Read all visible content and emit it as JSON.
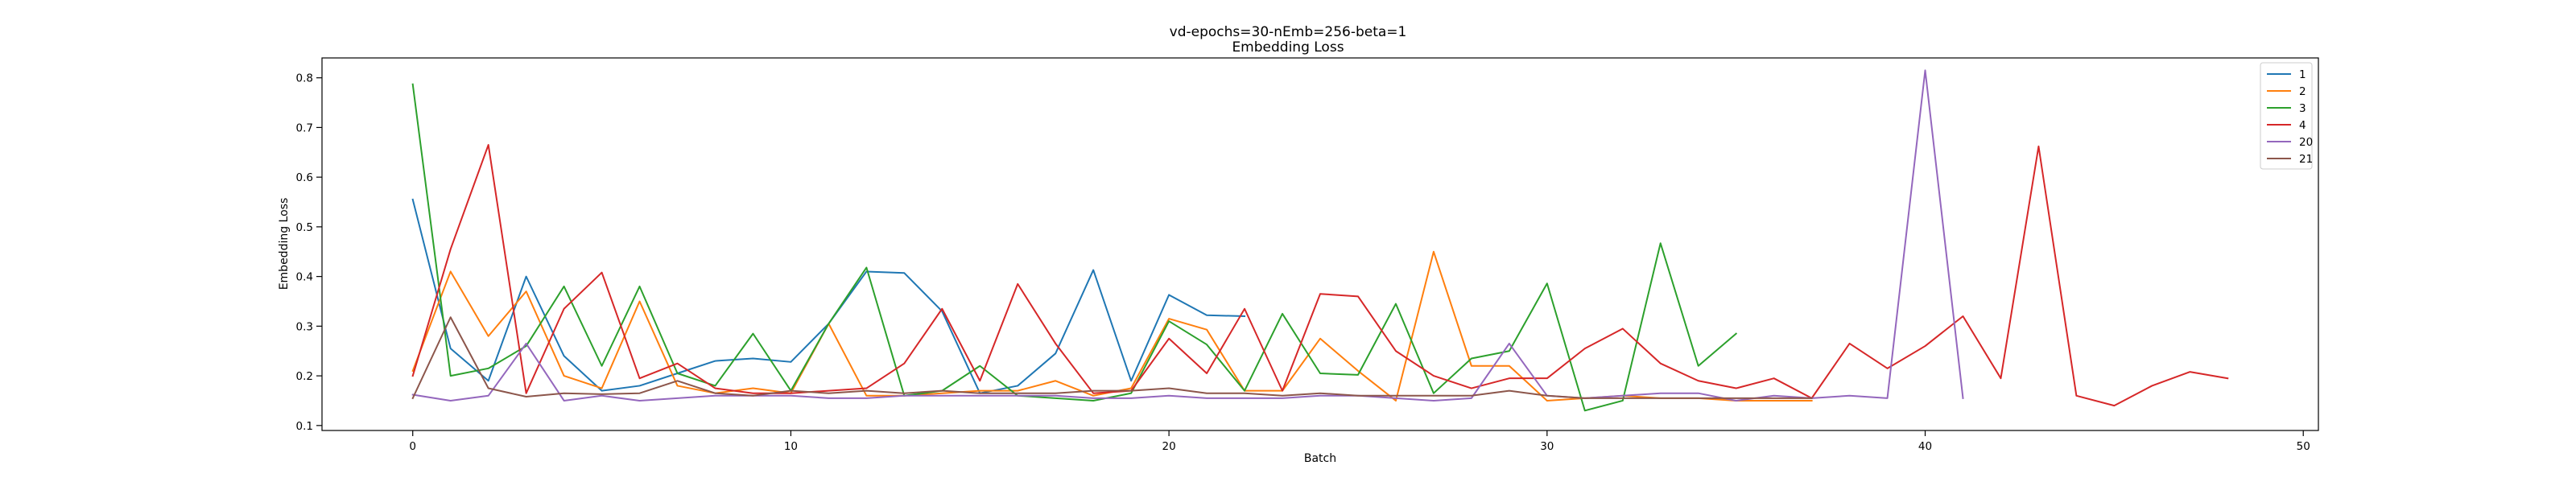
{
  "chart_data": {
    "type": "line",
    "title": "vd-epochs=30-nEmb=256-beta=1",
    "subtitle": "Embedding Loss",
    "xlabel": "Batch",
    "ylabel": "Embedding Loss",
    "xlim": [
      -2.4,
      50.4
    ],
    "ylim": [
      0.09,
      0.84
    ],
    "xticks": [
      0,
      10,
      20,
      30,
      40,
      50
    ],
    "xtick_labels": [
      "0",
      "10",
      "20",
      "30",
      "40",
      "50"
    ],
    "yticks": [
      0.1,
      0.2,
      0.3,
      0.4,
      0.5,
      0.6,
      0.7,
      0.8
    ],
    "ytick_labels": [
      "0.1",
      "0.2",
      "0.3",
      "0.4",
      "0.5",
      "0.6",
      "0.7",
      "0.8"
    ],
    "grid": false,
    "legend_position": "top-right",
    "series": [
      {
        "name": "1",
        "color": "#1f77b4",
        "x": [
          0,
          1,
          2,
          3,
          4,
          5,
          6,
          7,
          8,
          9,
          10,
          11,
          12,
          13,
          14,
          15,
          16,
          17,
          18,
          19,
          20,
          21,
          22
        ],
        "values": [
          0.555,
          0.255,
          0.19,
          0.4,
          0.24,
          0.17,
          0.18,
          0.205,
          0.23,
          0.235,
          0.228,
          0.305,
          0.41,
          0.407,
          0.33,
          0.165,
          0.18,
          0.245,
          0.413,
          0.19,
          0.363,
          0.322,
          0.32
        ]
      },
      {
        "name": "2",
        "color": "#ff7f0e",
        "x": [
          0,
          1,
          2,
          3,
          4,
          5,
          6,
          7,
          8,
          9,
          10,
          11,
          12,
          13,
          14,
          15,
          16,
          17,
          18,
          19,
          20,
          21,
          22,
          23,
          24,
          25,
          26,
          27,
          28,
          29,
          30,
          31,
          32,
          33,
          34,
          35,
          36,
          37
        ],
        "values": [
          0.21,
          0.41,
          0.28,
          0.37,
          0.2,
          0.175,
          0.35,
          0.18,
          0.165,
          0.175,
          0.165,
          0.305,
          0.16,
          0.16,
          0.165,
          0.17,
          0.17,
          0.19,
          0.16,
          0.175,
          0.315,
          0.293,
          0.17,
          0.17,
          0.275,
          0.21,
          0.15,
          0.45,
          0.22,
          0.22,
          0.15,
          0.155,
          0.16,
          0.155,
          0.155,
          0.15,
          0.15,
          0.15
        ]
      },
      {
        "name": "3",
        "color": "#2ca02c",
        "x": [
          0,
          1,
          2,
          3,
          4,
          5,
          6,
          7,
          8,
          9,
          10,
          11,
          12,
          13,
          14,
          15,
          16,
          17,
          18,
          19,
          20,
          21,
          22,
          23,
          24,
          25,
          26,
          27,
          28,
          29,
          30,
          31,
          32,
          33,
          34,
          35
        ],
        "values": [
          0.787,
          0.2,
          0.215,
          0.26,
          0.38,
          0.22,
          0.38,
          0.205,
          0.18,
          0.285,
          0.17,
          0.305,
          0.418,
          0.16,
          0.17,
          0.22,
          0.16,
          0.155,
          0.15,
          0.165,
          0.31,
          0.263,
          0.17,
          0.325,
          0.205,
          0.202,
          0.345,
          0.165,
          0.235,
          0.25,
          0.386,
          0.13,
          0.15,
          0.467,
          0.22,
          0.285
        ]
      },
      {
        "name": "4",
        "color": "#d62728",
        "x": [
          0,
          1,
          2,
          3,
          4,
          5,
          6,
          7,
          8,
          9,
          10,
          11,
          12,
          13,
          14,
          15,
          16,
          17,
          18,
          19,
          20,
          21,
          22,
          23,
          24,
          25,
          26,
          27,
          28,
          29,
          30,
          31,
          32,
          33,
          34,
          35,
          36,
          37,
          38,
          39,
          40,
          41,
          42,
          43,
          44,
          45,
          46,
          47,
          48
        ],
        "values": [
          0.2,
          0.455,
          0.665,
          0.165,
          0.335,
          0.408,
          0.195,
          0.225,
          0.175,
          0.165,
          0.165,
          0.17,
          0.175,
          0.225,
          0.335,
          0.19,
          0.385,
          0.265,
          0.165,
          0.17,
          0.275,
          0.205,
          0.335,
          0.17,
          0.365,
          0.36,
          0.25,
          0.2,
          0.175,
          0.195,
          0.195,
          0.255,
          0.295,
          0.225,
          0.19,
          0.175,
          0.195,
          0.155,
          0.265,
          0.215,
          0.26,
          0.32,
          0.195,
          0.662,
          0.16,
          0.14,
          0.18,
          0.208,
          0.195
        ]
      },
      {
        "name": "20",
        "color": "#9467bd",
        "x": [
          0,
          1,
          2,
          3,
          4,
          5,
          6,
          7,
          8,
          9,
          10,
          11,
          12,
          13,
          14,
          15,
          16,
          17,
          18,
          19,
          20,
          21,
          22,
          23,
          24,
          25,
          26,
          27,
          28,
          29,
          30,
          31,
          32,
          33,
          34,
          35,
          36,
          37,
          38,
          39,
          40,
          41
        ],
        "values": [
          0.162,
          0.15,
          0.16,
          0.265,
          0.15,
          0.16,
          0.15,
          0.155,
          0.16,
          0.16,
          0.16,
          0.155,
          0.155,
          0.16,
          0.16,
          0.16,
          0.16,
          0.16,
          0.155,
          0.155,
          0.16,
          0.155,
          0.155,
          0.155,
          0.16,
          0.16,
          0.155,
          0.15,
          0.155,
          0.265,
          0.16,
          0.155,
          0.16,
          0.165,
          0.165,
          0.15,
          0.16,
          0.155,
          0.16,
          0.155,
          0.815,
          0.155
        ]
      },
      {
        "name": "21",
        "color": "#8c564b",
        "x": [
          0,
          1,
          2,
          3,
          4,
          5,
          6,
          7,
          8,
          9,
          10,
          11,
          12,
          13,
          14,
          15,
          16,
          17,
          18,
          19,
          20,
          21,
          22,
          23,
          24,
          25,
          26,
          27,
          28,
          29,
          30,
          31,
          32,
          33,
          34,
          35,
          36,
          37
        ],
        "values": [
          0.155,
          0.318,
          0.175,
          0.158,
          0.165,
          0.163,
          0.165,
          0.19,
          0.165,
          0.16,
          0.17,
          0.165,
          0.17,
          0.165,
          0.17,
          0.165,
          0.165,
          0.165,
          0.17,
          0.17,
          0.175,
          0.165,
          0.165,
          0.16,
          0.165,
          0.16,
          0.16,
          0.16,
          0.16,
          0.17,
          0.16,
          0.155,
          0.155,
          0.155,
          0.155,
          0.155,
          0.155,
          0.155
        ]
      }
    ]
  }
}
